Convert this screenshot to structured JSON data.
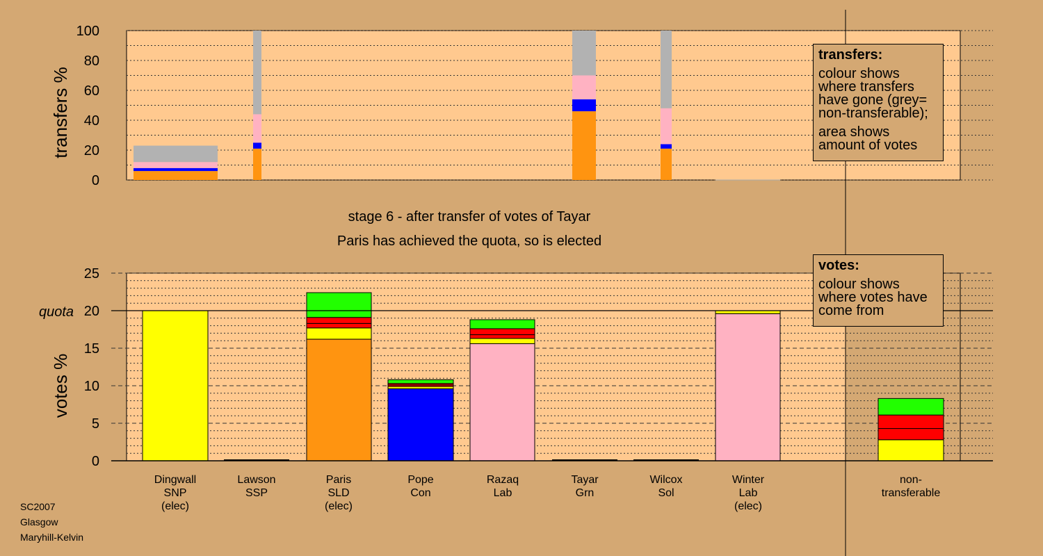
{
  "colors": {
    "background": "#d4a873",
    "plot_bg": "#ffc98f",
    "SNP": "#ffff00",
    "SSP": "#ff0000",
    "SLD": "#ff9410",
    "Con": "#0000ff",
    "Lab": "#ffb2c2",
    "Grn": "#22ff00",
    "Sol": "#ff0000",
    "non-transferable": "#b2b2b2"
  },
  "header": {
    "stage_line": "stage 6 - after transfer of votes of Tayar",
    "status_line": "Paris has achieved the quota, so is elected"
  },
  "legends": {
    "transfers": {
      "title": "transfers:",
      "line1": "colour shows where transfers have gone (grey= non-transferable);",
      "line2": "area shows amount of votes"
    },
    "votes": {
      "title": "votes:",
      "line1": "colour shows where votes have come from"
    }
  },
  "footer": {
    "line1": "SC2007",
    "line2": "Glasgow",
    "line3": "Maryhill-Kelvin"
  },
  "candidates": [
    {
      "name": "Dingwall",
      "party": "SNP",
      "status": "(elec)"
    },
    {
      "name": "Lawson",
      "party": "SSP",
      "status": ""
    },
    {
      "name": "Paris",
      "party": "SLD",
      "status": "(elec)"
    },
    {
      "name": "Pope",
      "party": "Con",
      "status": ""
    },
    {
      "name": "Razaq",
      "party": "Lab",
      "status": ""
    },
    {
      "name": "Tayar",
      "party": "Grn",
      "status": ""
    },
    {
      "name": "Wilcox",
      "party": "Sol",
      "status": ""
    },
    {
      "name": "Winter",
      "party": "Lab",
      "status": "(elec)"
    },
    {
      "name": "non-",
      "party": "transferable",
      "status": ""
    }
  ],
  "chart_data": [
    {
      "type": "bar",
      "subtype": "stacked-transfers",
      "ylabel": "transfers %",
      "ylim": [
        0,
        100
      ],
      "yticks": [
        0,
        20,
        40,
        60,
        80,
        100
      ],
      "columns": [
        {
          "from": "Dingwall",
          "segments": [
            {
              "party": "SLD",
              "value": 6
            },
            {
              "party": "Con",
              "value": 2
            },
            {
              "party": "Lab",
              "value": 4
            },
            {
              "party": "non-transferable",
              "value": 11
            }
          ]
        },
        {
          "from": "Lawson",
          "segments": [
            {
              "party": "SLD",
              "value": 21
            },
            {
              "party": "Con",
              "value": 4
            },
            {
              "party": "Lab",
              "value": 19
            },
            {
              "party": "non-transferable",
              "value": 56
            }
          ]
        },
        {
          "from": "Tayar",
          "segments": [
            {
              "party": "SLD",
              "value": 46
            },
            {
              "party": "Con",
              "value": 8
            },
            {
              "party": "Lab",
              "value": 16
            },
            {
              "party": "non-transferable",
              "value": 30
            }
          ]
        },
        {
          "from": "Wilcox",
          "segments": [
            {
              "party": "SLD",
              "value": 21
            },
            {
              "party": "Con",
              "value": 3
            },
            {
              "party": "Lab",
              "value": 24
            },
            {
              "party": "non-transferable",
              "value": 52
            }
          ]
        },
        {
          "from": "Winter",
          "segments": []
        }
      ]
    },
    {
      "type": "bar",
      "subtype": "stacked-votes",
      "ylabel": "votes %",
      "ylim": [
        0,
        25
      ],
      "yticks": [
        0,
        5,
        10,
        15,
        20,
        25
      ],
      "quota": 20,
      "quota_label": "quota",
      "bars": [
        {
          "candidate": "Dingwall",
          "segments": [
            {
              "party": "SNP",
              "value": 20
            }
          ]
        },
        {
          "candidate": "Lawson",
          "segments": []
        },
        {
          "candidate": "Paris",
          "segments": [
            {
              "party": "SLD",
              "value": 16.2
            },
            {
              "party": "SNP",
              "value": 1.5
            },
            {
              "party": "SSP",
              "value": 0.6
            },
            {
              "party": "Sol",
              "value": 0.8
            },
            {
              "party": "Grn",
              "value": 3.3
            }
          ]
        },
        {
          "candidate": "Pope",
          "segments": [
            {
              "party": "Con",
              "value": 9.6
            },
            {
              "party": "SNP",
              "value": 0.3
            },
            {
              "party": "SSP",
              "value": 0.2
            },
            {
              "party": "Sol",
              "value": 0.2
            },
            {
              "party": "Grn",
              "value": 0.5
            }
          ]
        },
        {
          "candidate": "Razaq",
          "segments": [
            {
              "party": "Lab",
              "value": 15.6
            },
            {
              "party": "SNP",
              "value": 0.7
            },
            {
              "party": "SSP",
              "value": 0.5
            },
            {
              "party": "Sol",
              "value": 0.8
            },
            {
              "party": "Grn",
              "value": 1.2
            }
          ]
        },
        {
          "candidate": "Tayar",
          "segments": []
        },
        {
          "candidate": "Wilcox",
          "segments": []
        },
        {
          "candidate": "Winter",
          "segments": [
            {
              "party": "Lab",
              "value": 19.6
            },
            {
              "party": "SNP",
              "value": 0.4
            }
          ]
        },
        {
          "candidate": "non-transferable",
          "segments": [
            {
              "party": "SNP",
              "value": 2.8
            },
            {
              "party": "SSP",
              "value": 1.5
            },
            {
              "party": "Sol",
              "value": 1.8
            },
            {
              "party": "Grn",
              "value": 2.2
            }
          ]
        }
      ]
    }
  ]
}
